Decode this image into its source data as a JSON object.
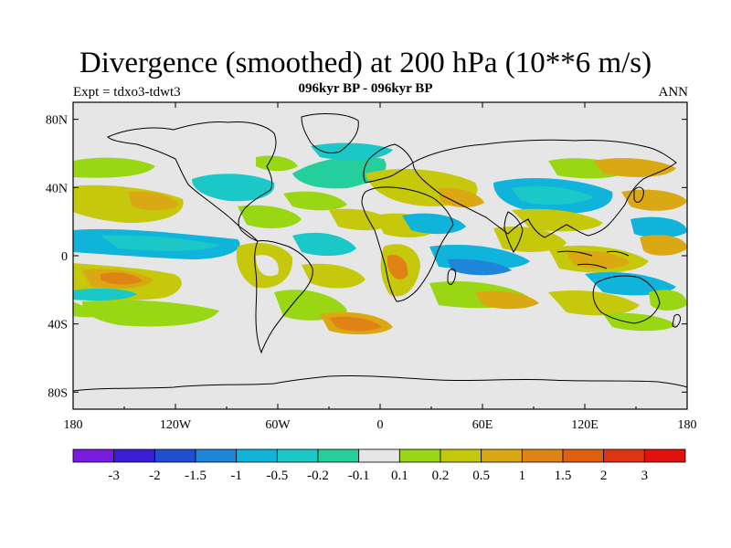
{
  "header": {
    "title": "Divergence (smoothed) at 200 hPa (10**6 m/s)",
    "experiment": "Expt = tdxo3-tdwt3",
    "subtitle": "096kyr BP - 096kyr BP",
    "season": "ANN"
  },
  "axes": {
    "lon_labels": [
      "180",
      "120W",
      "60W",
      "0",
      "60E",
      "120E",
      "180"
    ],
    "lat_labels": [
      "80N",
      "40N",
      "0",
      "40S",
      "80S"
    ]
  },
  "colorbar": {
    "labels": [
      "-3",
      "-2",
      "-1.5",
      "-1",
      "-0.5",
      "-0.2",
      "-0.1",
      "0.1",
      "0.2",
      "0.5",
      "1",
      "1.5",
      "2",
      "3"
    ],
    "colors": [
      "#7a1be0",
      "#3a1ed6",
      "#1f4fd0",
      "#1e86d8",
      "#10b3d9",
      "#1ac8c8",
      "#25cf9c",
      "#e6e6e6",
      "#99d614",
      "#c6c80c",
      "#d9a812",
      "#de8314",
      "#dd5f10",
      "#de3516",
      "#e1120f"
    ]
  },
  "map": {
    "background_color": "#e6e6e6",
    "coast_color": "#000000",
    "land_labels": []
  }
}
